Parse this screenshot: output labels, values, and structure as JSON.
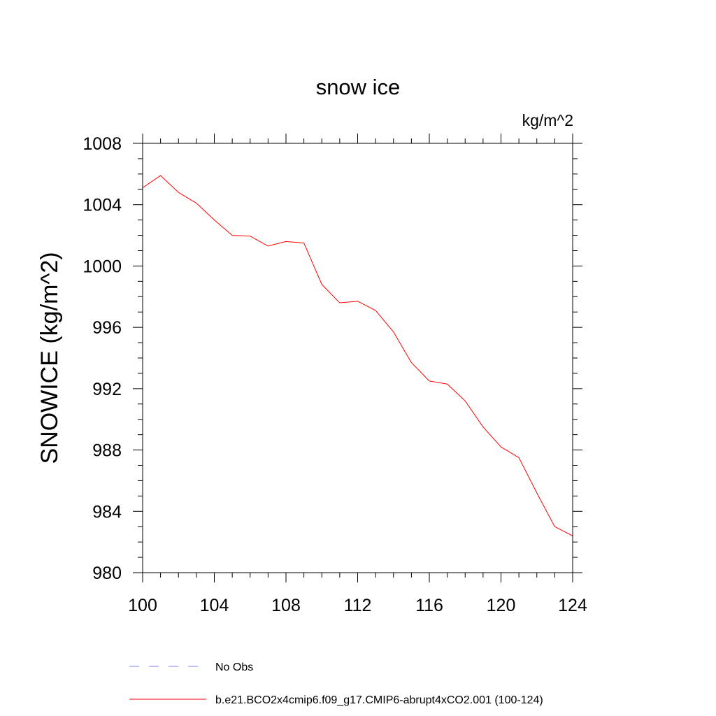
{
  "chart_data": {
    "type": "line",
    "title": "snow ice",
    "units": "kg/m^2",
    "ylabel": "SNOWICE  (kg/m^2)",
    "xlabel": "",
    "xlim": [
      100,
      124
    ],
    "ylim": [
      980,
      1008
    ],
    "xticks": [
      "100",
      "104",
      "108",
      "112",
      "116",
      "120",
      "124"
    ],
    "yticks": [
      "980",
      "984",
      "988",
      "992",
      "996",
      "1000",
      "1004",
      "1008"
    ],
    "grid": false,
    "legend_position": "bottom",
    "series": [
      {
        "name": "b.e21.BCO2x4cmip6.f09_g17.CMIP6-abrupt4xCO2.001 (100-124)",
        "color": "#ff0000",
        "style": "solid",
        "x": [
          100,
          101,
          102,
          103,
          104,
          105,
          106,
          107,
          108,
          109,
          110,
          111,
          112,
          113,
          114,
          115,
          116,
          117,
          118,
          119,
          120,
          121,
          122,
          123,
          124
        ],
        "y": [
          1005.1,
          1005.9,
          1004.8,
          1004.1,
          1003.0,
          1002.0,
          1001.95,
          1001.3,
          1001.6,
          1001.5,
          998.8,
          997.6,
          997.7,
          997.1,
          995.7,
          993.7,
          992.5,
          992.3,
          991.2,
          989.5,
          988.2,
          987.5,
          985.2,
          983.0,
          982.4
        ]
      }
    ],
    "legend_entries": [
      {
        "label": "No Obs",
        "color": "#8080ff",
        "style": "dashed"
      },
      {
        "label": "b.e21.BCO2x4cmip6.f09_g17.CMIP6-abrupt4xCO2.001 (100-124)",
        "color": "#ff0000",
        "style": "solid"
      }
    ]
  }
}
